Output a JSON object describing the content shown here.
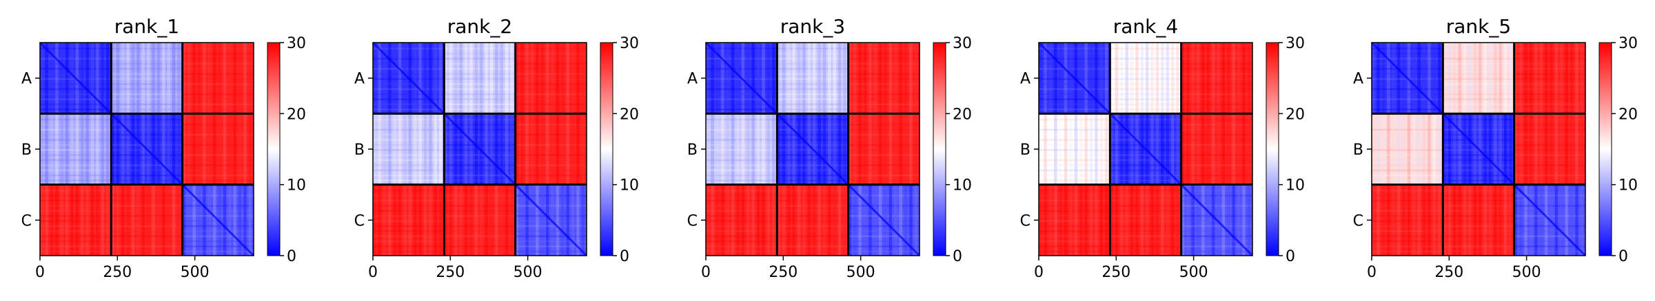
{
  "chart_data": [
    {
      "type": "heatmap",
      "title": "rank_1",
      "x_ticks": [
        0,
        250,
        500
      ],
      "y_categories": [
        "A",
        "B",
        "C"
      ],
      "boundaries": [
        230,
        460
      ],
      "x_range": [
        0,
        690
      ],
      "colorbar": {
        "min": 0,
        "max": 30,
        "ticks": [
          0,
          10,
          20,
          30
        ],
        "colormap": [
          "#0000ff",
          "#ffffff",
          "#ff0000"
        ]
      },
      "block_means": [
        [
          3,
          10,
          28
        ],
        [
          10,
          3,
          28
        ],
        [
          28,
          28,
          5
        ]
      ]
    },
    {
      "type": "heatmap",
      "title": "rank_2",
      "x_ticks": [
        0,
        250,
        500
      ],
      "y_categories": [
        "A",
        "B",
        "C"
      ],
      "boundaries": [
        230,
        460
      ],
      "x_range": [
        0,
        690
      ],
      "colorbar": {
        "min": 0,
        "max": 30,
        "ticks": [
          0,
          10,
          20,
          30
        ],
        "colormap": [
          "#0000ff",
          "#ffffff",
          "#ff0000"
        ]
      },
      "block_means": [
        [
          3,
          12,
          28
        ],
        [
          12,
          3,
          28
        ],
        [
          28,
          28,
          5
        ]
      ]
    },
    {
      "type": "heatmap",
      "title": "rank_3",
      "x_ticks": [
        0,
        250,
        500
      ],
      "y_categories": [
        "A",
        "B",
        "C"
      ],
      "boundaries": [
        230,
        460
      ],
      "x_range": [
        0,
        690
      ],
      "colorbar": {
        "min": 0,
        "max": 30,
        "ticks": [
          0,
          10,
          20,
          30
        ],
        "colormap": [
          "#0000ff",
          "#ffffff",
          "#ff0000"
        ]
      },
      "block_means": [
        [
          3,
          12,
          28
        ],
        [
          12,
          3,
          28
        ],
        [
          28,
          28,
          5
        ]
      ]
    },
    {
      "type": "heatmap",
      "title": "rank_4",
      "x_ticks": [
        0,
        250,
        500
      ],
      "y_categories": [
        "A",
        "B",
        "C"
      ],
      "boundaries": [
        230,
        460
      ],
      "x_range": [
        0,
        690
      ],
      "colorbar": {
        "min": 0,
        "max": 30,
        "ticks": [
          0,
          10,
          20,
          30
        ],
        "colormap": [
          "#0000ff",
          "#ffffff",
          "#ff0000"
        ]
      },
      "block_means": [
        [
          3,
          15,
          28
        ],
        [
          15,
          3,
          28
        ],
        [
          28,
          28,
          5
        ]
      ]
    },
    {
      "type": "heatmap",
      "title": "rank_5",
      "x_ticks": [
        0,
        250,
        500
      ],
      "y_categories": [
        "A",
        "B",
        "C"
      ],
      "boundaries": [
        230,
        460
      ],
      "x_range": [
        0,
        690
      ],
      "colorbar": {
        "min": 0,
        "max": 30,
        "ticks": [
          0,
          10,
          20,
          30
        ],
        "colormap": [
          "#0000ff",
          "#ffffff",
          "#ff0000"
        ]
      },
      "block_means": [
        [
          3,
          17,
          28
        ],
        [
          17,
          3,
          28
        ],
        [
          28,
          28,
          5
        ]
      ]
    }
  ]
}
